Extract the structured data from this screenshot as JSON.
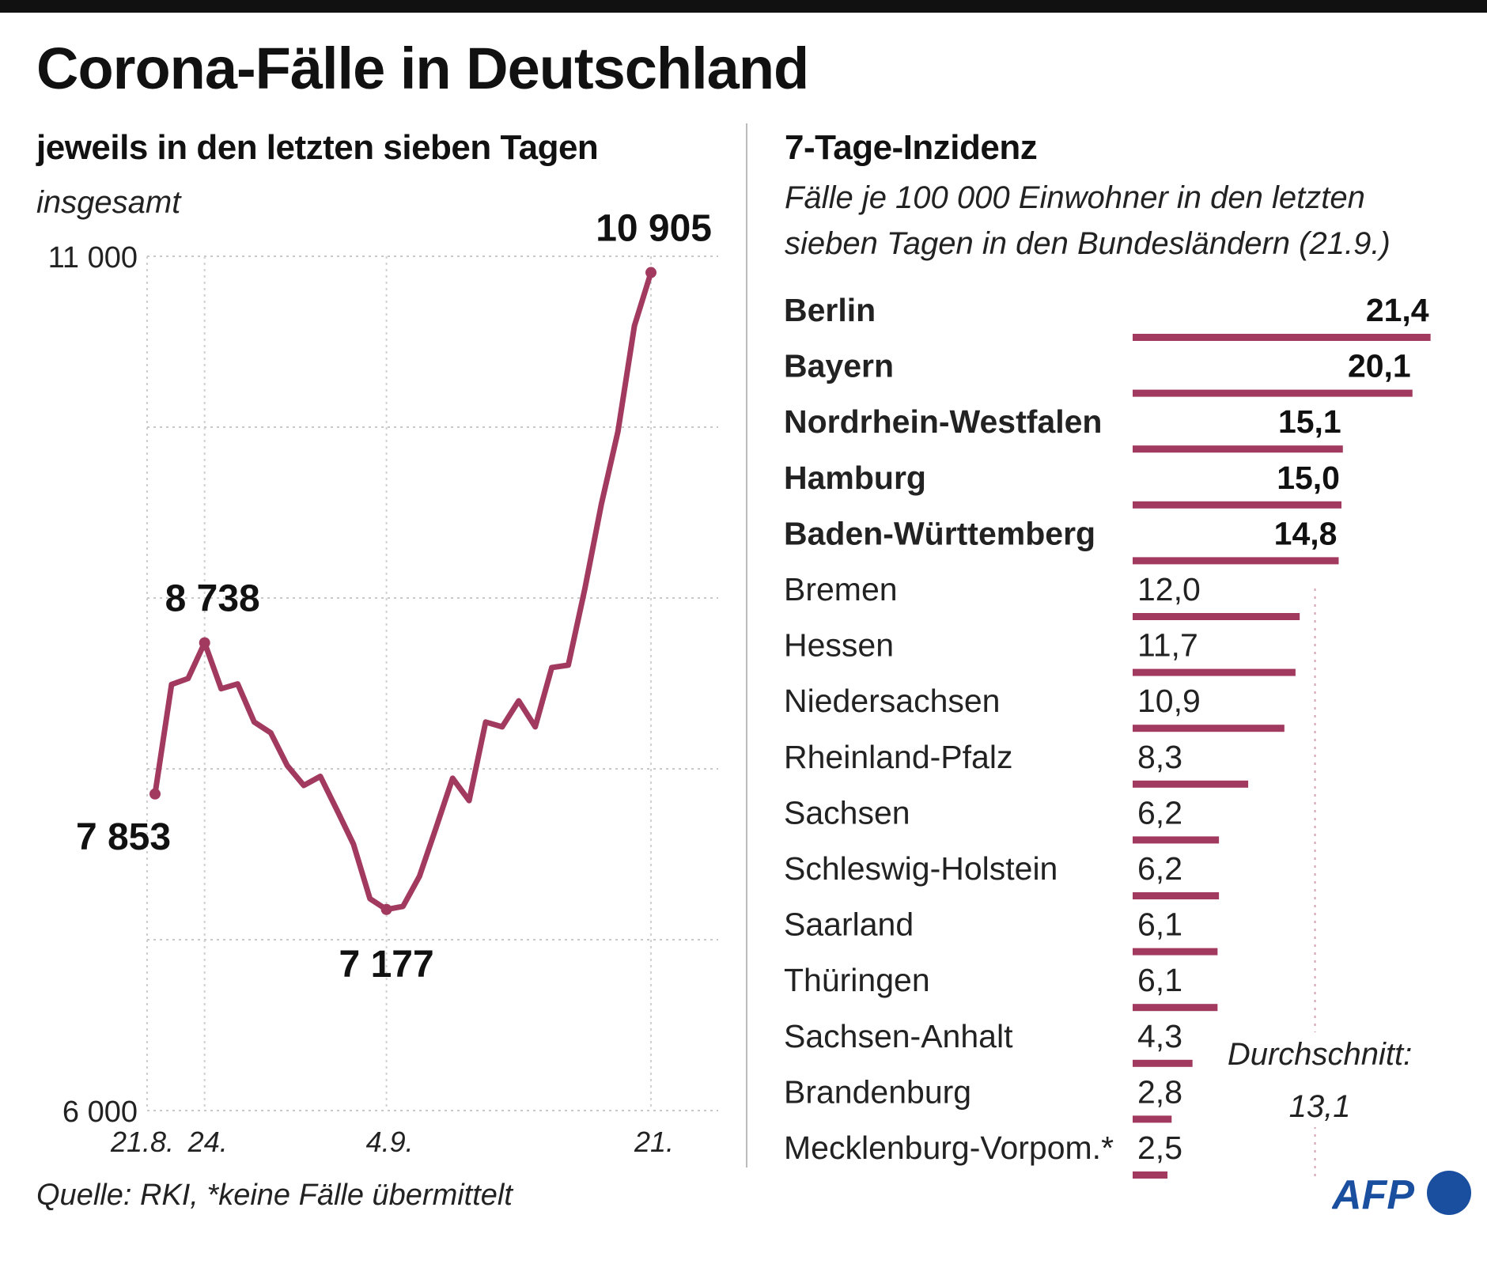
{
  "header": {
    "title": "Corona-Fälle in Deutschland"
  },
  "left": {
    "subtitle": "jeweils in den letzten sieben Tagen",
    "note": "insgesamt"
  },
  "right": {
    "subtitle": "7-Tage-Inzidenz",
    "description_line1": "Fälle je 100 000 Einwohner in den letzten",
    "description_line2": "sieben Tagen in den Bundesländern (21.9.)",
    "average_label": "Durchschnitt:",
    "average_value": "13,1"
  },
  "footer": {
    "source": "Quelle: RKI, *keine Fälle übermittelt",
    "logo": "AFP"
  },
  "colors": {
    "series": "#a23a60",
    "logo": "#1a4fa0"
  },
  "chart_data": [
    {
      "type": "line",
      "title": "jeweils in den letzten sieben Tagen",
      "subtitle": "insgesamt",
      "x_start": "21.8.",
      "x_end": "21.9.",
      "x_tick_labels": [
        {
          "day_index": 0,
          "label": "21.8."
        },
        {
          "day_index": 3,
          "label": "24."
        },
        {
          "day_index": 14,
          "label": "4.9."
        },
        {
          "day_index": 30,
          "label": "21."
        }
      ],
      "ylim": [
        6000,
        11000
      ],
      "y_ticks": [
        6000,
        7000,
        8000,
        9000,
        10000,
        11000
      ],
      "y_tick_labels": [
        {
          "value": 11000,
          "label": "11 000"
        },
        {
          "value": 6000,
          "label": "6 000"
        }
      ],
      "grid": true,
      "values": [
        7853,
        8494,
        8529,
        8738,
        8469,
        8497,
        8274,
        8211,
        8019,
        7903,
        7956,
        7760,
        7560,
        7240,
        7177,
        7195,
        7372,
        7655,
        7945,
        7814,
        8274,
        8246,
        8398,
        8246,
        8593,
        8607,
        9053,
        9549,
        9973,
        10593,
        10905
      ],
      "annotations": [
        {
          "day_index": 0,
          "value": 7853,
          "label": "7 853"
        },
        {
          "day_index": 3,
          "value": 8738,
          "label": "8 738"
        },
        {
          "day_index": 14,
          "value": 7177,
          "label": "7 177"
        },
        {
          "day_index": 30,
          "value": 10905,
          "label": "10 905"
        }
      ]
    },
    {
      "type": "bar",
      "orientation": "horizontal",
      "title": "7-Tage-Inzidenz",
      "average": 13.1,
      "categories": [
        "Berlin",
        "Bayern",
        "Nordrhein-Westfalen",
        "Hamburg",
        "Baden-Württemberg",
        "Bremen",
        "Hessen",
        "Niedersachsen",
        "Rheinland-Pfalz",
        "Sachsen",
        "Schleswig-Holstein",
        "Saarland",
        "Thüringen",
        "Sachsen-Anhalt",
        "Brandenburg",
        "Mecklenburg-Vorpom.*"
      ],
      "values": [
        21.4,
        20.1,
        15.1,
        15.0,
        14.8,
        12.0,
        11.7,
        10.9,
        8.3,
        6.2,
        6.2,
        6.1,
        6.1,
        4.3,
        2.8,
        2.5
      ],
      "value_labels": [
        "21,4",
        "20,1",
        "15,1",
        "15,0",
        "14,8",
        "12,0",
        "11,7",
        "10,9",
        "8,3",
        "6,2",
        "6,2",
        "6,1",
        "6,1",
        "4,3",
        "2,8",
        "2,5"
      ],
      "above_average_bold": true
    }
  ]
}
